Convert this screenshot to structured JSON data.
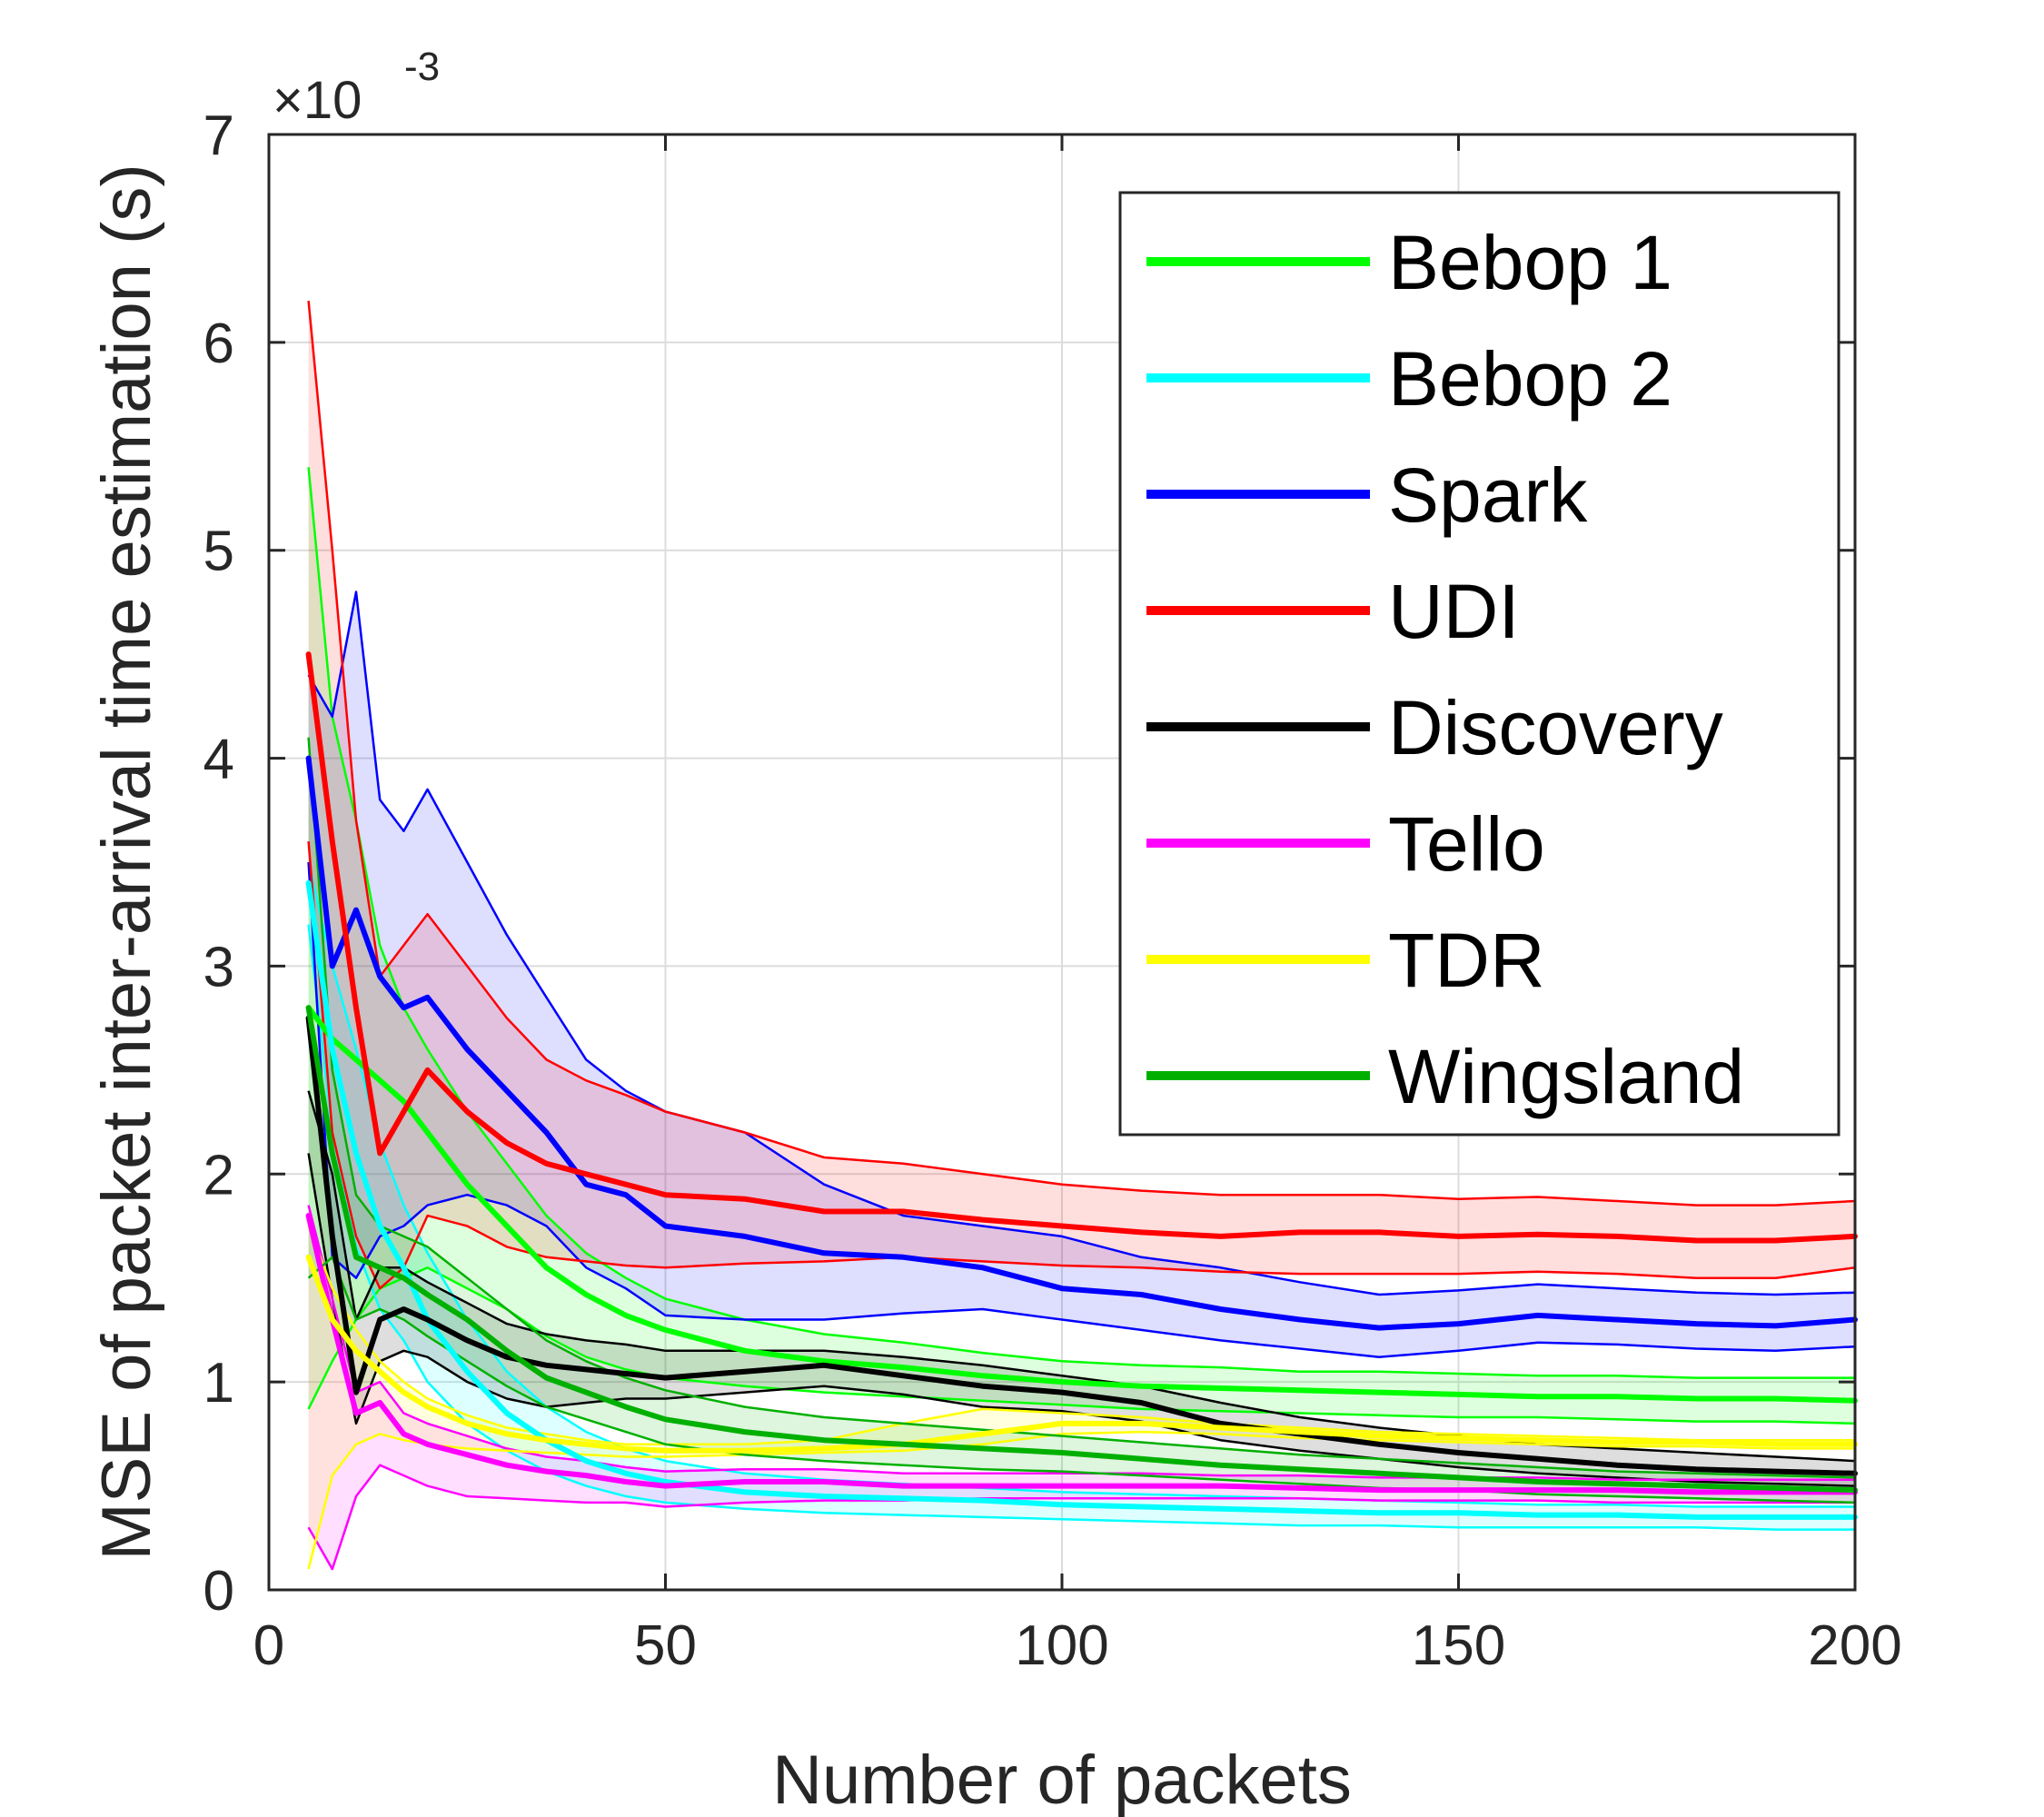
{
  "chart_data": {
    "type": "line",
    "title": "",
    "xlabel": "Number of packets",
    "ylabel": "MSE of packet inter-arrival time estimation (s)",
    "y_exponent_label": "×10",
    "y_exponent_power": "-3",
    "xlim": [
      0,
      200
    ],
    "ylim": [
      0,
      7
    ],
    "xticks": [
      0,
      50,
      100,
      150,
      200
    ],
    "xtick_labels": [
      "0",
      "50",
      "100",
      "150",
      "200"
    ],
    "yticks": [
      0,
      1,
      2,
      3,
      4,
      5,
      6,
      7
    ],
    "ytick_labels": [
      "0",
      "1",
      "2",
      "3",
      "4",
      "5",
      "6",
      "7"
    ],
    "grid": true,
    "legend_position": "top-right",
    "x": [
      5,
      8,
      11,
      14,
      17,
      20,
      25,
      30,
      35,
      40,
      45,
      50,
      60,
      70,
      80,
      90,
      100,
      110,
      120,
      130,
      140,
      150,
      160,
      170,
      180,
      190,
      200
    ],
    "series": [
      {
        "name": "Bebop 1",
        "color": "#00ff00",
        "mean": [
          2.8,
          2.65,
          2.55,
          2.45,
          2.35,
          2.2,
          1.95,
          1.75,
          1.55,
          1.42,
          1.32,
          1.25,
          1.15,
          1.1,
          1.07,
          1.03,
          1.0,
          0.98,
          0.97,
          0.96,
          0.95,
          0.94,
          0.93,
          0.93,
          0.92,
          0.92,
          0.91
        ],
        "upper": [
          5.4,
          4.2,
          3.7,
          3.1,
          2.8,
          2.6,
          2.3,
          2.05,
          1.8,
          1.62,
          1.5,
          1.4,
          1.3,
          1.23,
          1.19,
          1.14,
          1.1,
          1.08,
          1.07,
          1.05,
          1.05,
          1.04,
          1.03,
          1.03,
          1.02,
          1.02,
          1.02
        ],
        "lower": [
          0.87,
          1.1,
          1.3,
          1.45,
          1.5,
          1.55,
          1.45,
          1.35,
          1.22,
          1.12,
          1.06,
          1.02,
          0.98,
          0.95,
          0.93,
          0.91,
          0.89,
          0.87,
          0.86,
          0.85,
          0.84,
          0.83,
          0.83,
          0.82,
          0.81,
          0.81,
          0.8
        ]
      },
      {
        "name": "Bebop 2",
        "color": "#00ffff",
        "mean": [
          3.4,
          2.6,
          2.1,
          1.75,
          1.55,
          1.3,
          1.05,
          0.85,
          0.72,
          0.62,
          0.56,
          0.52,
          0.47,
          0.45,
          0.44,
          0.43,
          0.41,
          0.4,
          0.39,
          0.38,
          0.37,
          0.37,
          0.36,
          0.36,
          0.35,
          0.35,
          0.35
        ],
        "upper": [
          3.5,
          3.0,
          2.6,
          2.15,
          1.85,
          1.62,
          1.3,
          1.05,
          0.88,
          0.76,
          0.68,
          0.62,
          0.56,
          0.53,
          0.51,
          0.49,
          0.47,
          0.46,
          0.45,
          0.44,
          0.43,
          0.42,
          0.41,
          0.41,
          0.4,
          0.4,
          0.4
        ],
        "lower": [
          3.2,
          2.2,
          1.65,
          1.35,
          1.2,
          1.0,
          0.8,
          0.67,
          0.57,
          0.5,
          0.45,
          0.42,
          0.39,
          0.37,
          0.36,
          0.35,
          0.34,
          0.33,
          0.32,
          0.31,
          0.31,
          0.3,
          0.3,
          0.3,
          0.3,
          0.29,
          0.29
        ]
      },
      {
        "name": "Spark",
        "color": "#0000ff",
        "mean": [
          4.0,
          3.0,
          3.27,
          2.95,
          2.8,
          2.85,
          2.6,
          2.4,
          2.2,
          1.95,
          1.9,
          1.75,
          1.7,
          1.62,
          1.6,
          1.55,
          1.45,
          1.42,
          1.35,
          1.3,
          1.26,
          1.28,
          1.32,
          1.3,
          1.28,
          1.27,
          1.3
        ],
        "upper": [
          4.4,
          4.2,
          4.8,
          3.8,
          3.65,
          3.85,
          3.5,
          3.15,
          2.85,
          2.55,
          2.4,
          2.3,
          2.2,
          1.95,
          1.8,
          1.75,
          1.7,
          1.6,
          1.55,
          1.48,
          1.42,
          1.44,
          1.47,
          1.45,
          1.43,
          1.42,
          1.43
        ],
        "lower": [
          3.5,
          1.6,
          1.5,
          1.7,
          1.75,
          1.85,
          1.9,
          1.85,
          1.75,
          1.55,
          1.45,
          1.32,
          1.3,
          1.3,
          1.33,
          1.35,
          1.3,
          1.25,
          1.2,
          1.16,
          1.12,
          1.15,
          1.19,
          1.18,
          1.16,
          1.15,
          1.17
        ]
      },
      {
        "name": "UDI",
        "color": "#ff0000",
        "mean": [
          4.5,
          3.6,
          2.8,
          2.1,
          2.3,
          2.5,
          2.3,
          2.15,
          2.05,
          2.0,
          1.95,
          1.9,
          1.88,
          1.82,
          1.82,
          1.78,
          1.75,
          1.72,
          1.7,
          1.72,
          1.72,
          1.7,
          1.71,
          1.7,
          1.68,
          1.68,
          1.7
        ],
        "upper": [
          6.2,
          5.0,
          3.7,
          2.95,
          3.1,
          3.25,
          3.0,
          2.75,
          2.55,
          2.45,
          2.38,
          2.3,
          2.2,
          2.08,
          2.05,
          2.0,
          1.95,
          1.92,
          1.9,
          1.9,
          1.9,
          1.88,
          1.89,
          1.87,
          1.85,
          1.85,
          1.87
        ],
        "lower": [
          3.6,
          2.2,
          1.7,
          1.45,
          1.55,
          1.8,
          1.75,
          1.65,
          1.6,
          1.58,
          1.56,
          1.55,
          1.57,
          1.58,
          1.6,
          1.58,
          1.56,
          1.55,
          1.53,
          1.52,
          1.52,
          1.52,
          1.53,
          1.52,
          1.5,
          1.5,
          1.55
        ]
      },
      {
        "name": "Discovery",
        "color": "#000000",
        "mean": [
          2.75,
          1.7,
          0.95,
          1.3,
          1.35,
          1.3,
          1.2,
          1.12,
          1.08,
          1.06,
          1.04,
          1.02,
          1.05,
          1.08,
          1.03,
          0.98,
          0.95,
          0.9,
          0.8,
          0.75,
          0.7,
          0.66,
          0.63,
          0.6,
          0.58,
          0.57,
          0.56
        ],
        "upper": [
          2.4,
          2.0,
          1.3,
          1.55,
          1.55,
          1.48,
          1.38,
          1.28,
          1.23,
          1.2,
          1.18,
          1.15,
          1.15,
          1.15,
          1.12,
          1.08,
          1.03,
          0.98,
          0.9,
          0.83,
          0.78,
          0.74,
          0.7,
          0.68,
          0.66,
          0.64,
          0.62
        ],
        "lower": [
          2.1,
          1.4,
          0.8,
          1.1,
          1.15,
          1.12,
          1.0,
          0.92,
          0.88,
          0.9,
          0.92,
          0.92,
          0.95,
          0.98,
          0.94,
          0.88,
          0.86,
          0.81,
          0.72,
          0.67,
          0.63,
          0.59,
          0.56,
          0.54,
          0.52,
          0.51,
          0.5
        ]
      },
      {
        "name": "Tello",
        "color": "#ff00ff",
        "mean": [
          1.8,
          1.3,
          0.85,
          0.9,
          0.75,
          0.7,
          0.65,
          0.6,
          0.57,
          0.55,
          0.52,
          0.5,
          0.52,
          0.52,
          0.5,
          0.5,
          0.5,
          0.5,
          0.5,
          0.49,
          0.48,
          0.48,
          0.48,
          0.48,
          0.47,
          0.47,
          0.47
        ],
        "upper": [
          1.85,
          1.4,
          0.95,
          1.0,
          0.85,
          0.8,
          0.74,
          0.68,
          0.64,
          0.62,
          0.59,
          0.57,
          0.58,
          0.58,
          0.56,
          0.56,
          0.56,
          0.56,
          0.55,
          0.55,
          0.54,
          0.54,
          0.54,
          0.53,
          0.53,
          0.53,
          0.53
        ],
        "lower": [
          0.3,
          0.1,
          0.45,
          0.6,
          0.55,
          0.5,
          0.45,
          0.44,
          0.43,
          0.42,
          0.42,
          0.4,
          0.42,
          0.43,
          0.43,
          0.44,
          0.44,
          0.44,
          0.44,
          0.44,
          0.43,
          0.43,
          0.43,
          0.42,
          0.42,
          0.42,
          0.42
        ]
      },
      {
        "name": "TDR",
        "color": "#ffff00",
        "mean": [
          1.6,
          1.3,
          1.15,
          1.05,
          0.95,
          0.88,
          0.8,
          0.75,
          0.72,
          0.7,
          0.68,
          0.67,
          0.67,
          0.68,
          0.7,
          0.75,
          0.8,
          0.8,
          0.78,
          0.76,
          0.74,
          0.73,
          0.72,
          0.71,
          0.71,
          0.7,
          0.7
        ],
        "upper": [
          1.75,
          1.45,
          1.25,
          1.1,
          1.0,
          0.92,
          0.84,
          0.78,
          0.75,
          0.72,
          0.7,
          0.7,
          0.7,
          0.72,
          0.8,
          0.87,
          0.85,
          0.83,
          0.8,
          0.78,
          0.76,
          0.75,
          0.74,
          0.73,
          0.72,
          0.72,
          0.72
        ],
        "lower": [
          0.1,
          0.55,
          0.7,
          0.75,
          0.72,
          0.7,
          0.68,
          0.67,
          0.66,
          0.65,
          0.64,
          0.64,
          0.65,
          0.66,
          0.67,
          0.7,
          0.75,
          0.76,
          0.75,
          0.73,
          0.72,
          0.71,
          0.7,
          0.69,
          0.69,
          0.68,
          0.68
        ]
      },
      {
        "name": "Wingsland",
        "color": "#00b000",
        "mean": [
          2.8,
          2.1,
          1.6,
          1.55,
          1.5,
          1.42,
          1.3,
          1.15,
          1.02,
          0.95,
          0.88,
          0.82,
          0.76,
          0.72,
          0.7,
          0.68,
          0.66,
          0.63,
          0.6,
          0.58,
          0.56,
          0.54,
          0.52,
          0.51,
          0.5,
          0.49,
          0.48
        ],
        "upper": [
          4.1,
          2.5,
          1.9,
          1.75,
          1.7,
          1.65,
          1.5,
          1.35,
          1.2,
          1.1,
          1.02,
          0.96,
          0.88,
          0.83,
          0.8,
          0.77,
          0.74,
          0.71,
          0.68,
          0.65,
          0.63,
          0.61,
          0.59,
          0.57,
          0.56,
          0.55,
          0.54
        ],
        "lower": [
          1.5,
          1.6,
          1.3,
          1.35,
          1.3,
          1.22,
          1.1,
          0.98,
          0.88,
          0.82,
          0.76,
          0.7,
          0.65,
          0.62,
          0.6,
          0.58,
          0.57,
          0.55,
          0.53,
          0.51,
          0.49,
          0.48,
          0.46,
          0.45,
          0.44,
          0.43,
          0.42
        ]
      }
    ]
  }
}
